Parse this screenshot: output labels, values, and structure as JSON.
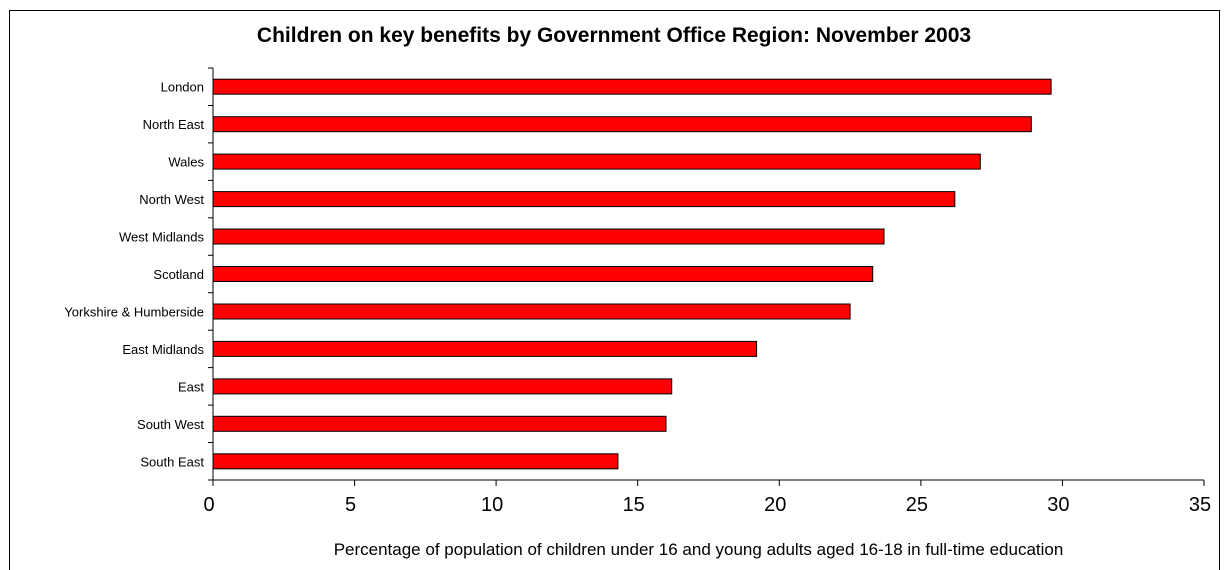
{
  "chart_data": {
    "type": "bar",
    "orientation": "horizontal",
    "title": "Children on key benefits by Government Office Region: November 2003",
    "xlabel": "Percentage of population of children under 16 and young adults aged 16-18 in full-time education",
    "ylabel": "",
    "xlim": [
      0,
      35
    ],
    "xticks": [
      0,
      5,
      10,
      15,
      20,
      25,
      30,
      35
    ],
    "grid": false,
    "legend": "none",
    "bar_color": "#ff0000",
    "categories": [
      "London",
      "North East",
      "Wales",
      "North West",
      "West Midlands",
      "Scotland",
      "Yorkshire & Humberside",
      "East Midlands",
      "East",
      "South West",
      "South East"
    ],
    "values": [
      29.6,
      28.9,
      27.1,
      26.2,
      23.7,
      23.3,
      22.5,
      19.2,
      16.2,
      16.0,
      14.3
    ]
  }
}
